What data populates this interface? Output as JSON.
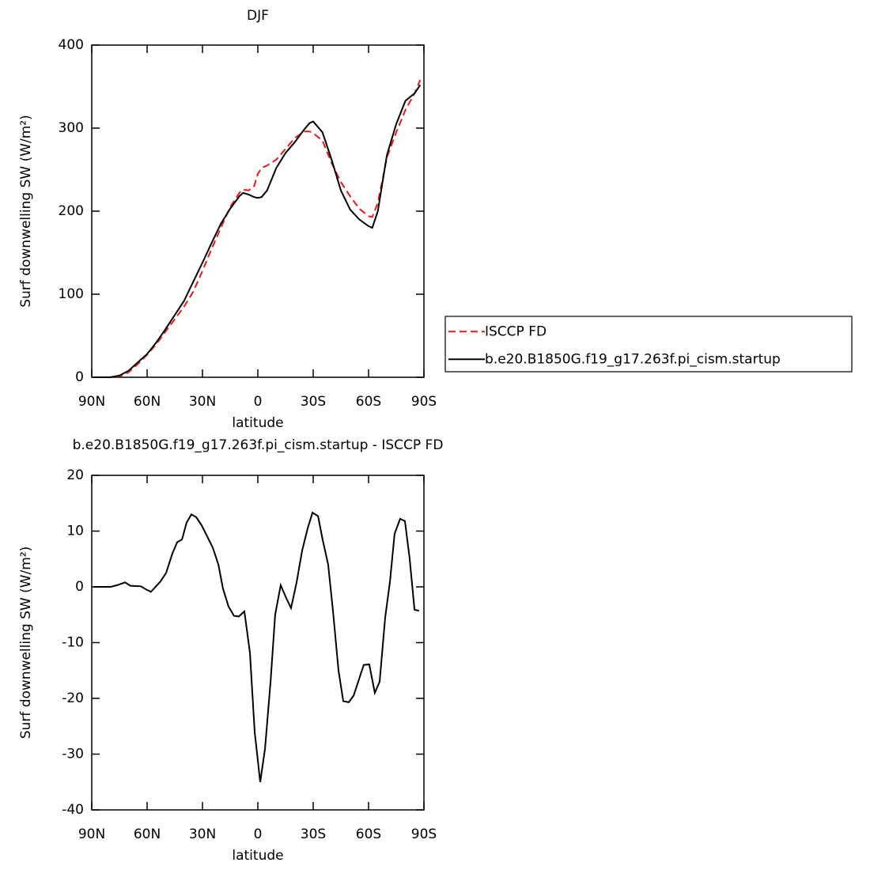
{
  "chart_data": [
    {
      "type": "line",
      "title": "DJF",
      "xlabel": "latitude",
      "ylabel": "Surf downwelling SW (W/m²)",
      "x": [
        89,
        85,
        80,
        75,
        70,
        65,
        60,
        55,
        50,
        45,
        40,
        35,
        30,
        25,
        20,
        15,
        10,
        8,
        5,
        2,
        0,
        -2,
        -5,
        -10,
        -15,
        -20,
        -25,
        -28,
        -30,
        -35,
        -40,
        -45,
        -50,
        -55,
        -60,
        -62,
        -65,
        -70,
        -75,
        -80,
        -85,
        -88
      ],
      "xlim": [
        90,
        -90
      ],
      "xticks": [
        {
          "value": 90,
          "label": "90N"
        },
        {
          "value": 60,
          "label": "60N"
        },
        {
          "value": 30,
          "label": "30N"
        },
        0,
        {
          "value": -30,
          "label": "30S"
        },
        {
          "value": -60,
          "label": "60S"
        },
        {
          "value": -90,
          "label": "90S"
        }
      ],
      "ylim": [
        0,
        400
      ],
      "yticks": [
        0,
        100,
        200,
        300,
        400
      ],
      "legend": "right",
      "series": [
        {
          "name": "ISCCP FD",
          "color": "#e41a1c",
          "dashed": true,
          "values": [
            0,
            0,
            0,
            1,
            6,
            16,
            27,
            40,
            55,
            70,
            85,
            103,
            128,
            155,
            180,
            205,
            222,
            226,
            225,
            230,
            245,
            252,
            255,
            262,
            275,
            288,
            296,
            296,
            294,
            285,
            258,
            235,
            218,
            203,
            194,
            193,
            210,
            265,
            295,
            322,
            342,
            358
          ]
        },
        {
          "name": "b.e20.B1850G.f19_g17.263f.pi_cism.startup",
          "color": "#000000",
          "dashed": false,
          "values": [
            0,
            0,
            0,
            2,
            8,
            18,
            28,
            42,
            58,
            75,
            92,
            115,
            138,
            162,
            185,
            203,
            218,
            222,
            220,
            217,
            216,
            217,
            225,
            252,
            270,
            283,
            298,
            306,
            308,
            295,
            262,
            225,
            202,
            190,
            182,
            180,
            200,
            268,
            305,
            333,
            342,
            352
          ]
        }
      ]
    },
    {
      "type": "line",
      "title": "b.e20.B1850G.f19_g17.263f.pi_cism.startup - ISCCP FD",
      "xlabel": "latitude",
      "ylabel": "Surf downwelling SW (W/m²)",
      "x": [
        89.1,
        79.7,
        76.3,
        72,
        69,
        63.4,
        60.4,
        57.9,
        54.9,
        52.7,
        49.7,
        46.3,
        43.7,
        41.1,
        38.6,
        36,
        33.4,
        30.4,
        27.4,
        24.4,
        21.4,
        18.9,
        15.9,
        12.9,
        10.3,
        7.3,
        4.3,
        1.7,
        -1.3,
        -3.9,
        -6.9,
        -9.4,
        -12.4,
        -15.4,
        -18,
        -21,
        -24,
        -27,
        -29.6,
        -32.6,
        -35.1,
        -38.1,
        -40.7,
        -43.7,
        -46.3,
        -49.3,
        -51.9,
        -54.9,
        -57.4,
        -60.4,
        -63.4,
        -66,
        -69,
        -71.6,
        -74.1,
        -77.1,
        -79.7,
        -82.3,
        -84.9,
        -87.4
      ],
      "xlim": [
        90,
        -90
      ],
      "xticks": [
        {
          "value": 90,
          "label": "90N"
        },
        {
          "value": 60,
          "label": "60N"
        },
        {
          "value": 30,
          "label": "30N"
        },
        0,
        {
          "value": -30,
          "label": "30S"
        },
        {
          "value": -60,
          "label": "60S"
        },
        {
          "value": -90,
          "label": "90S"
        }
      ],
      "ylim": [
        -40,
        20
      ],
      "yticks": [
        -40,
        -30,
        -20,
        -10,
        0,
        10,
        20
      ],
      "series": [
        {
          "color": "#000000",
          "dashed": false,
          "values": [
            0,
            0,
            0.3,
            0.8,
            0.2,
            0.1,
            -0.5,
            -0.9,
            0.2,
            1,
            2.5,
            6,
            8,
            8.5,
            11.5,
            13,
            12.5,
            11,
            9,
            7,
            4,
            -0.3,
            -3.5,
            -5.2,
            -5.3,
            -4.4,
            -11.8,
            -26,
            -35,
            -29,
            -17,
            -5,
            0.3,
            -2,
            -3.8,
            0.8,
            6.5,
            10.5,
            13.3,
            12.7,
            8.5,
            4,
            -4.3,
            -15,
            -20.5,
            -20.7,
            -19.5,
            -16.5,
            -14,
            -13.9,
            -19,
            -17,
            -5.5,
            1,
            9.5,
            12.2,
            11.8,
            5,
            -4.1,
            -4.3
          ]
        }
      ]
    }
  ]
}
